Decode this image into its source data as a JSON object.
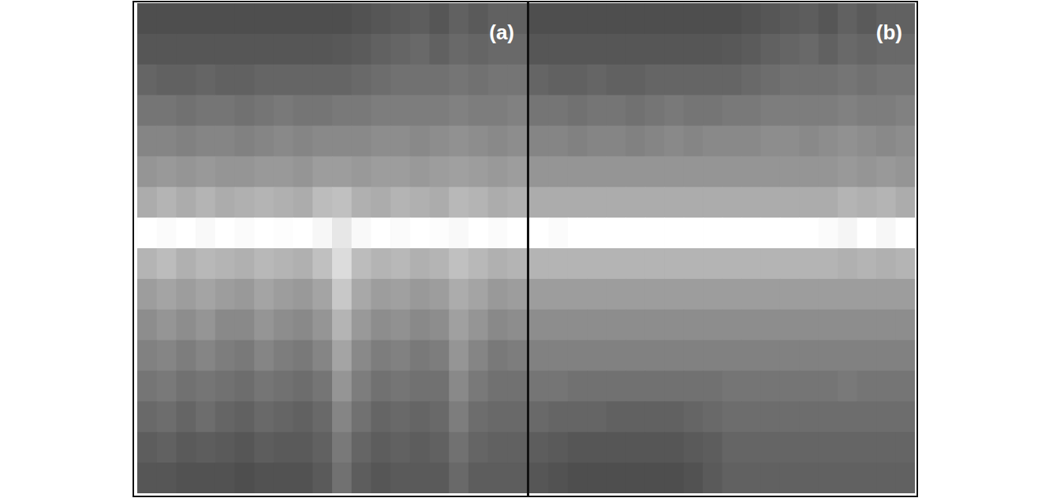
{
  "chart_data": [
    {
      "type": "heatmap",
      "title": "(a)",
      "xlim": [
        0,
        20
      ],
      "ylim": [
        0,
        16
      ],
      "xticks": [
        2.5,
        5,
        7.5,
        10,
        12.5,
        15,
        17.5
      ],
      "yticks": [
        1.6,
        3.2,
        4.8,
        6.4,
        8,
        9.6,
        11.2,
        12.8,
        14.4
      ],
      "tick_labels": false,
      "cells": [
        [
          10,
          10,
          10,
          10,
          10,
          10,
          10,
          10,
          10,
          10,
          10,
          12,
          14,
          16,
          18,
          14,
          20,
          16,
          20,
          20
        ],
        [
          14,
          14,
          14,
          14,
          14,
          14,
          14,
          14,
          14,
          14,
          15,
          17,
          20,
          22,
          24,
          20,
          24,
          22,
          24,
          24
        ],
        [
          22,
          20,
          20,
          22,
          20,
          20,
          22,
          22,
          22,
          22,
          22,
          24,
          26,
          28,
          28,
          28,
          30,
          28,
          30,
          30
        ],
        [
          30,
          30,
          28,
          30,
          30,
          28,
          30,
          32,
          30,
          30,
          32,
          32,
          34,
          34,
          34,
          34,
          36,
          34,
          34,
          36
        ],
        [
          38,
          38,
          36,
          38,
          38,
          36,
          38,
          40,
          38,
          40,
          40,
          40,
          42,
          42,
          40,
          42,
          44,
          42,
          40,
          42
        ],
        [
          46,
          48,
          46,
          48,
          46,
          46,
          48,
          48,
          46,
          50,
          50,
          48,
          50,
          50,
          48,
          50,
          52,
          50,
          48,
          50
        ],
        [
          58,
          62,
          58,
          62,
          58,
          60,
          62,
          60,
          58,
          66,
          68,
          60,
          58,
          62,
          60,
          58,
          64,
          62,
          58,
          60
        ],
        [
          100,
          98,
          100,
          97,
          100,
          98,
          100,
          99,
          100,
          96,
          88,
          97,
          100,
          98,
          100,
          99,
          97,
          100,
          98,
          100
        ],
        [
          62,
          66,
          60,
          64,
          62,
          60,
          64,
          62,
          60,
          68,
          82,
          66,
          62,
          64,
          60,
          62,
          68,
          64,
          60,
          62
        ],
        [
          50,
          54,
          50,
          54,
          50,
          48,
          54,
          50,
          48,
          54,
          72,
          56,
          50,
          52,
          48,
          50,
          58,
          54,
          48,
          50
        ],
        [
          42,
          46,
          42,
          46,
          40,
          40,
          46,
          42,
          40,
          46,
          62,
          48,
          42,
          44,
          40,
          42,
          52,
          46,
          40,
          42
        ],
        [
          36,
          38,
          34,
          38,
          34,
          32,
          38,
          34,
          32,
          38,
          54,
          40,
          34,
          36,
          32,
          34,
          46,
          38,
          32,
          34
        ],
        [
          30,
          32,
          28,
          30,
          28,
          26,
          30,
          28,
          26,
          30,
          46,
          34,
          28,
          30,
          28,
          28,
          40,
          32,
          28,
          28
        ],
        [
          24,
          26,
          22,
          26,
          22,
          20,
          24,
          22,
          20,
          24,
          38,
          28,
          22,
          24,
          22,
          24,
          34,
          26,
          24,
          24
        ],
        [
          18,
          20,
          16,
          18,
          16,
          14,
          18,
          16,
          16,
          20,
          32,
          22,
          18,
          20,
          18,
          20,
          28,
          22,
          20,
          20
        ],
        [
          14,
          14,
          12,
          12,
          12,
          10,
          12,
          12,
          12,
          16,
          28,
          18,
          14,
          16,
          16,
          16,
          24,
          18,
          18,
          18
        ]
      ]
    },
    {
      "type": "heatmap",
      "title": "(b)",
      "xlim": [
        0,
        20
      ],
      "ylim": [
        0,
        16
      ],
      "xticks": [
        2.5,
        5,
        7.5,
        10,
        12.5,
        15,
        17.5
      ],
      "tick_labels": false,
      "cells": [
        [
          10,
          10,
          10,
          10,
          10,
          10,
          10,
          10,
          10,
          10,
          10,
          12,
          14,
          16,
          18,
          14,
          20,
          16,
          20,
          20
        ],
        [
          14,
          14,
          14,
          14,
          14,
          14,
          14,
          14,
          14,
          14,
          15,
          17,
          20,
          22,
          24,
          20,
          24,
          22,
          24,
          24
        ],
        [
          22,
          20,
          20,
          22,
          20,
          20,
          22,
          22,
          22,
          22,
          22,
          24,
          26,
          28,
          28,
          28,
          30,
          28,
          30,
          30
        ],
        [
          30,
          30,
          28,
          30,
          30,
          28,
          30,
          32,
          30,
          30,
          32,
          32,
          34,
          34,
          34,
          34,
          36,
          34,
          34,
          36
        ],
        [
          38,
          38,
          36,
          38,
          38,
          36,
          38,
          40,
          38,
          40,
          40,
          40,
          42,
          42,
          40,
          42,
          44,
          42,
          40,
          42
        ],
        [
          46,
          46,
          46,
          46,
          46,
          46,
          46,
          46,
          46,
          46,
          46,
          46,
          46,
          46,
          46,
          46,
          48,
          46,
          48,
          46
        ],
        [
          58,
          58,
          58,
          58,
          58,
          58,
          58,
          58,
          58,
          58,
          58,
          58,
          58,
          58,
          58,
          58,
          62,
          60,
          62,
          58
        ],
        [
          100,
          98,
          100,
          100,
          100,
          100,
          100,
          100,
          100,
          100,
          100,
          100,
          100,
          100,
          100,
          98,
          95,
          100,
          96,
          100
        ],
        [
          62,
          62,
          62,
          62,
          62,
          62,
          62,
          62,
          62,
          62,
          62,
          62,
          62,
          62,
          62,
          62,
          60,
          62,
          60,
          62
        ],
        [
          50,
          50,
          50,
          50,
          50,
          50,
          50,
          50,
          50,
          50,
          50,
          50,
          50,
          50,
          50,
          50,
          50,
          50,
          50,
          50
        ],
        [
          42,
          42,
          42,
          42,
          42,
          42,
          42,
          42,
          42,
          42,
          42,
          42,
          42,
          42,
          42,
          42,
          42,
          42,
          42,
          42
        ],
        [
          36,
          36,
          36,
          36,
          36,
          36,
          36,
          36,
          36,
          36,
          36,
          36,
          36,
          36,
          36,
          36,
          36,
          36,
          36,
          36
        ],
        [
          30,
          30,
          28,
          28,
          28,
          28,
          28,
          28,
          28,
          28,
          30,
          30,
          30,
          30,
          30,
          30,
          32,
          30,
          30,
          30
        ],
        [
          24,
          22,
          22,
          22,
          20,
          20,
          20,
          20,
          22,
          24,
          26,
          26,
          26,
          26,
          26,
          26,
          26,
          26,
          26,
          26
        ],
        [
          18,
          16,
          14,
          14,
          14,
          14,
          14,
          14,
          16,
          18,
          22,
          22,
          22,
          22,
          22,
          22,
          22,
          22,
          22,
          22
        ],
        [
          14,
          12,
          10,
          10,
          10,
          10,
          10,
          10,
          12,
          16,
          20,
          20,
          20,
          20,
          20,
          20,
          20,
          20,
          20,
          20
        ]
      ]
    }
  ]
}
